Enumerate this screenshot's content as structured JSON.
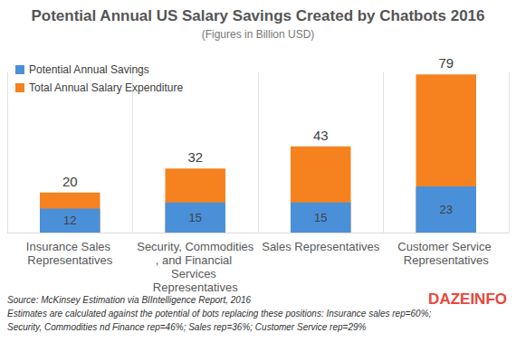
{
  "chart_data": {
    "type": "bar",
    "title": "Potential Annual US Salary Savings Created by Chatbots 2016",
    "subtitle": "(Figures in Billion USD)",
    "categories": [
      "Insurance Sales Representatives",
      "Security, Commodities, and Financial Services Representatives",
      "Sales Representatives",
      "Customer Service Representatives"
    ],
    "series": [
      {
        "name": "Potential Annual Savings",
        "color": "#4a90d9",
        "values": [
          12,
          15,
          15,
          23
        ]
      },
      {
        "name": "Total Annual Salary Expenditure",
        "color": "#f5821f",
        "values": [
          20,
          32,
          43,
          79
        ]
      }
    ],
    "ylim": [
      0,
      80
    ],
    "stacked": false,
    "data_labels": true,
    "tick_labels": "x",
    "grid": true,
    "legend": "top-left",
    "notes": [
      "Source: McKinsey Estimation via BIIntelligence Report, 2016",
      "Estimates are calculated against the potential of bots replacing these positions: Insurance sales rep=60%;",
      "Security, Commodities nd Finance rep=46%; Sales rep=36%; Customer Service rep=29%"
    ],
    "logo": "DAZEINFO"
  }
}
